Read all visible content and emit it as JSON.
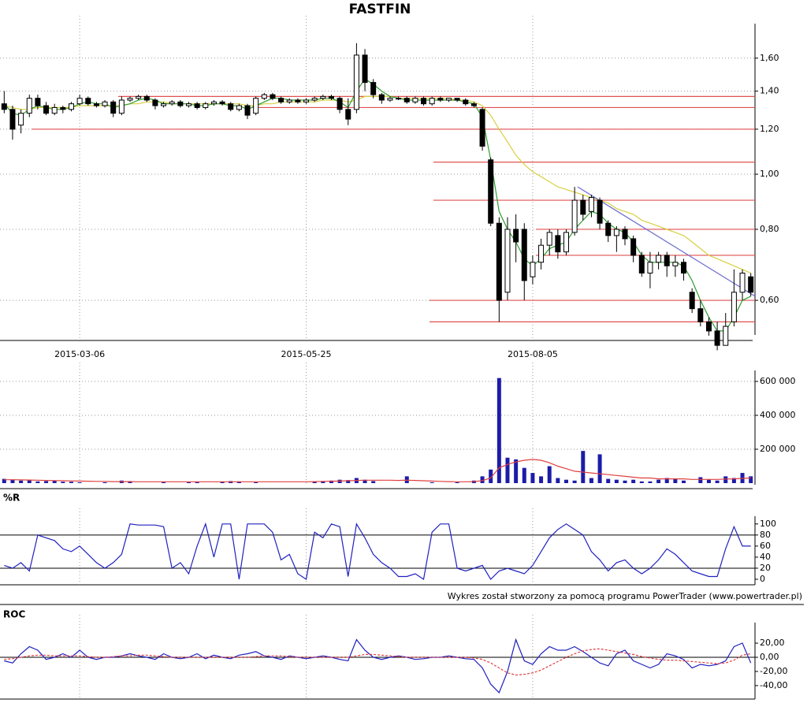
{
  "chart_data": [
    {
      "type": "candlestick",
      "title": "FASTFIN",
      "log_scale": true,
      "grid": true,
      "categories": [
        null,
        null,
        null,
        null,
        null,
        null,
        null,
        null,
        null,
        "2015-03-06",
        null,
        null,
        null,
        null,
        null,
        null,
        null,
        null,
        null,
        null,
        null,
        null,
        null,
        null,
        null,
        null,
        null,
        null,
        null,
        null,
        null,
        null,
        null,
        null,
        null,
        null,
        "2015-05-25",
        null,
        null,
        null,
        null,
        null,
        null,
        null,
        null,
        null,
        null,
        null,
        null,
        null,
        null,
        null,
        null,
        null,
        null,
        null,
        null,
        null,
        null,
        null,
        null,
        null,
        null,
        "2015-08-05",
        null,
        null,
        null,
        null,
        null,
        null,
        null,
        null,
        null,
        null,
        null,
        null,
        null,
        null,
        null,
        null,
        null,
        null,
        null,
        null,
        null,
        null,
        null,
        null,
        null,
        null
      ],
      "open": [
        1.33,
        1.3,
        1.22,
        1.28,
        1.36,
        1.32,
        1.28,
        1.31,
        1.3,
        1.33,
        1.36,
        1.33,
        1.32,
        1.34,
        1.28,
        1.35,
        1.36,
        1.37,
        1.35,
        1.32,
        1.33,
        1.34,
        1.32,
        1.33,
        1.31,
        1.33,
        1.34,
        1.33,
        1.3,
        1.32,
        1.28,
        1.36,
        1.38,
        1.36,
        1.34,
        1.35,
        1.34,
        1.35,
        1.36,
        1.37,
        1.36,
        1.3,
        1.3,
        1.62,
        1.45,
        1.38,
        1.35,
        1.36,
        1.36,
        1.34,
        1.36,
        1.33,
        1.36,
        1.35,
        1.36,
        1.35,
        1.33,
        1.3,
        1.06,
        0.82,
        0.62,
        0.8,
        0.8,
        0.66,
        0.7,
        0.75,
        0.78,
        0.73,
        0.79,
        0.9,
        0.86,
        0.9,
        0.82,
        0.78,
        0.8,
        0.77,
        0.72,
        0.67,
        0.7,
        0.72,
        0.69,
        0.7,
        0.62,
        0.58,
        0.55,
        0.53,
        0.5,
        0.55,
        0.62,
        0.66
      ],
      "high": [
        1.4,
        1.32,
        1.3,
        1.38,
        1.38,
        1.34,
        1.33,
        1.32,
        1.34,
        1.38,
        1.37,
        1.34,
        1.35,
        1.35,
        1.37,
        1.37,
        1.38,
        1.38,
        1.36,
        1.34,
        1.35,
        1.35,
        1.34,
        1.34,
        1.34,
        1.35,
        1.35,
        1.34,
        1.33,
        1.33,
        1.37,
        1.39,
        1.39,
        1.37,
        1.36,
        1.36,
        1.36,
        1.37,
        1.38,
        1.38,
        1.37,
        1.36,
        1.7,
        1.66,
        1.47,
        1.39,
        1.37,
        1.37,
        1.37,
        1.37,
        1.37,
        1.37,
        1.37,
        1.36,
        1.36,
        1.36,
        1.34,
        1.31,
        1.07,
        0.84,
        0.84,
        0.85,
        0.82,
        0.72,
        0.77,
        0.8,
        0.8,
        0.8,
        0.95,
        0.92,
        0.92,
        0.91,
        0.83,
        0.81,
        0.81,
        0.78,
        0.73,
        0.73,
        0.73,
        0.73,
        0.72,
        0.71,
        0.63,
        0.6,
        0.56,
        0.55,
        0.57,
        0.68,
        0.68,
        0.67
      ],
      "low": [
        1.28,
        1.15,
        1.18,
        1.26,
        1.3,
        1.27,
        1.27,
        1.28,
        1.29,
        1.32,
        1.32,
        1.31,
        1.31,
        1.26,
        1.27,
        1.34,
        1.35,
        1.34,
        1.3,
        1.31,
        1.32,
        1.31,
        1.31,
        1.3,
        1.3,
        1.32,
        1.32,
        1.29,
        1.29,
        1.25,
        1.27,
        1.35,
        1.35,
        1.33,
        1.33,
        1.33,
        1.33,
        1.34,
        1.35,
        1.35,
        1.28,
        1.22,
        1.28,
        1.4,
        1.36,
        1.33,
        1.34,
        1.35,
        1.33,
        1.33,
        1.32,
        1.32,
        1.34,
        1.34,
        1.34,
        1.32,
        1.31,
        1.1,
        0.81,
        0.55,
        0.6,
        0.7,
        0.6,
        0.64,
        0.68,
        0.72,
        0.71,
        0.72,
        0.78,
        0.83,
        0.84,
        0.8,
        0.76,
        0.73,
        0.75,
        0.7,
        0.66,
        0.63,
        0.68,
        0.66,
        0.66,
        0.65,
        0.57,
        0.54,
        0.52,
        0.49,
        0.5,
        0.54,
        0.6,
        0.61
      ],
      "close": [
        1.3,
        1.2,
        1.28,
        1.36,
        1.32,
        1.28,
        1.31,
        1.3,
        1.33,
        1.36,
        1.33,
        1.32,
        1.34,
        1.28,
        1.35,
        1.36,
        1.37,
        1.35,
        1.32,
        1.33,
        1.34,
        1.32,
        1.33,
        1.31,
        1.33,
        1.34,
        1.33,
        1.3,
        1.32,
        1.27,
        1.36,
        1.38,
        1.36,
        1.34,
        1.35,
        1.34,
        1.35,
        1.36,
        1.37,
        1.36,
        1.3,
        1.25,
        1.62,
        1.45,
        1.38,
        1.35,
        1.36,
        1.36,
        1.34,
        1.36,
        1.33,
        1.36,
        1.35,
        1.36,
        1.35,
        1.33,
        1.32,
        1.12,
        0.82,
        0.6,
        0.8,
        0.76,
        0.65,
        0.7,
        0.75,
        0.79,
        0.73,
        0.79,
        0.9,
        0.85,
        0.91,
        0.82,
        0.78,
        0.8,
        0.77,
        0.72,
        0.67,
        0.7,
        0.72,
        0.69,
        0.7,
        0.67,
        0.58,
        0.55,
        0.53,
        0.5,
        0.54,
        0.62,
        0.67,
        0.62
      ],
      "moving_averages": [
        {
          "color": "#2e9e2e",
          "values": [
            1.33,
            1.28,
            1.27,
            1.3,
            1.32,
            1.31,
            1.3,
            1.3,
            1.31,
            1.33,
            1.34,
            1.33,
            1.33,
            1.31,
            1.32,
            1.33,
            1.35,
            1.36,
            1.35,
            1.33,
            1.33,
            1.33,
            1.33,
            1.32,
            1.32,
            1.33,
            1.33,
            1.32,
            1.32,
            1.3,
            1.32,
            1.34,
            1.36,
            1.36,
            1.35,
            1.35,
            1.35,
            1.35,
            1.36,
            1.36,
            1.34,
            1.31,
            1.4,
            1.47,
            1.44,
            1.4,
            1.37,
            1.36,
            1.35,
            1.35,
            1.35,
            1.35,
            1.35,
            1.35,
            1.35,
            1.34,
            1.33,
            1.26,
            1.06,
            0.86,
            0.8,
            0.76,
            0.71,
            0.69,
            0.71,
            0.74,
            0.75,
            0.76,
            0.8,
            0.83,
            0.86,
            0.85,
            0.82,
            0.8,
            0.79,
            0.76,
            0.72,
            0.7,
            0.7,
            0.7,
            0.7,
            0.69,
            0.65,
            0.6,
            0.56,
            0.53,
            0.53,
            0.56,
            0.6,
            0.61
          ]
        },
        {
          "color": "#d8d040",
          "values": [
            1.32,
            1.31,
            1.3,
            1.3,
            1.31,
            1.31,
            1.31,
            1.31,
            1.31,
            1.32,
            1.32,
            1.32,
            1.32,
            1.32,
            1.32,
            1.33,
            1.33,
            1.34,
            1.34,
            1.34,
            1.33,
            1.33,
            1.33,
            1.33,
            1.33,
            1.33,
            1.33,
            1.33,
            1.33,
            1.32,
            1.32,
            1.33,
            1.33,
            1.34,
            1.34,
            1.34,
            1.34,
            1.34,
            1.35,
            1.35,
            1.35,
            1.34,
            1.35,
            1.37,
            1.37,
            1.37,
            1.37,
            1.36,
            1.36,
            1.36,
            1.36,
            1.36,
            1.36,
            1.36,
            1.35,
            1.35,
            1.34,
            1.32,
            1.27,
            1.2,
            1.14,
            1.08,
            1.04,
            1.01,
            0.99,
            0.97,
            0.95,
            0.94,
            0.93,
            0.92,
            0.91,
            0.9,
            0.89,
            0.87,
            0.86,
            0.85,
            0.83,
            0.82,
            0.81,
            0.8,
            0.79,
            0.78,
            0.76,
            0.74,
            0.72,
            0.71,
            0.7,
            0.69,
            0.68,
            0.67
          ]
        }
      ],
      "levels": [
        1.37,
        1.31,
        1.2,
        1.05,
        0.9,
        0.8,
        0.72,
        0.6,
        0.55
      ],
      "levels_color": "#e05050",
      "trend_line": [
        0.95,
        0.61
      ],
      "trend_color": "#6a6ad0",
      "ylim": [
        0.51,
        1.84
      ],
      "yticks": [
        {
          "value": 0.6,
          "label": "0,60"
        },
        {
          "value": 0.8,
          "label": "0,80"
        },
        {
          "value": 1.0,
          "label": "1,00"
        },
        {
          "value": 1.2,
          "label": "1,20"
        },
        {
          "value": 1.4,
          "label": "1,40"
        },
        {
          "value": 1.6,
          "label": "1,60"
        }
      ]
    },
    {
      "type": "bar",
      "grid": true,
      "color": "#1c1ca8",
      "values": [
        25000,
        20000,
        15000,
        20000,
        10000,
        12000,
        15000,
        8000,
        8000,
        5000,
        0,
        0,
        5000,
        0,
        15000,
        12000,
        0,
        0,
        0,
        6000,
        0,
        0,
        5000,
        6000,
        0,
        0,
        8000,
        12000,
        10000,
        0,
        5000,
        0,
        0,
        0,
        0,
        0,
        0,
        8000,
        12000,
        15000,
        20000,
        18000,
        30000,
        20000,
        12000,
        0,
        0,
        0,
        40000,
        0,
        0,
        5000,
        0,
        0,
        5000,
        0,
        15000,
        40000,
        80000,
        620000,
        150000,
        140000,
        90000,
        60000,
        40000,
        100000,
        30000,
        20000,
        15000,
        190000,
        30000,
        170000,
        25000,
        20000,
        15000,
        20000,
        10000,
        10000,
        20000,
        30000,
        25000,
        15000,
        0,
        35000,
        20000,
        15000,
        40000,
        30000,
        60000,
        40000
      ],
      "average": {
        "color": "#e04040",
        "values": [
          20000,
          20000,
          19000,
          18000,
          17000,
          16000,
          15000,
          14000,
          13000,
          12000,
          11000,
          10000,
          10000,
          9000,
          9000,
          9000,
          8000,
          8000,
          8000,
          8000,
          8000,
          8000,
          8000,
          8000,
          8000,
          8000,
          8000,
          8000,
          8000,
          8000,
          8000,
          8000,
          8000,
          8000,
          8000,
          8000,
          8000,
          9000,
          10000,
          11000,
          12000,
          14000,
          16000,
          17000,
          17000,
          17000,
          17000,
          16000,
          17000,
          16000,
          14000,
          12000,
          10000,
          9000,
          8000,
          8000,
          9000,
          15000,
          30000,
          90000,
          110000,
          125000,
          135000,
          140000,
          135000,
          120000,
          100000,
          85000,
          70000,
          65000,
          60000,
          55000,
          50000,
          45000,
          40000,
          35000,
          30000,
          30000,
          25000,
          25000,
          25000,
          25000,
          22000,
          22000,
          22000,
          22000,
          24000,
          25000,
          28000,
          30000
        ]
      },
      "ylim": [
        0,
        665000
      ],
      "yticks": [
        {
          "value": 200000,
          "label": "200 000"
        },
        {
          "value": 400000,
          "label": "400 000"
        },
        {
          "value": 600000,
          "label": "600 000"
        }
      ]
    },
    {
      "type": "line",
      "title": "%R",
      "color": "#2020c0",
      "values": [
        25,
        20,
        30,
        15,
        80,
        75,
        70,
        55,
        50,
        60,
        45,
        30,
        20,
        30,
        45,
        100,
        98,
        98,
        98,
        95,
        20,
        30,
        10,
        60,
        100,
        40,
        100,
        100,
        0,
        100,
        100,
        100,
        85,
        35,
        45,
        10,
        0,
        85,
        75,
        100,
        95,
        5,
        100,
        75,
        45,
        30,
        20,
        5,
        5,
        10,
        0,
        85,
        100,
        100,
        20,
        15,
        20,
        25,
        0,
        15,
        20,
        15,
        10,
        25,
        50,
        75,
        90,
        100,
        90,
        80,
        50,
        35,
        15,
        30,
        35,
        20,
        10,
        20,
        35,
        55,
        45,
        30,
        15,
        10,
        5,
        5,
        55,
        95,
        60,
        60
      ],
      "reference_lines": [
        20,
        80
      ],
      "ylim": [
        -10,
        114
      ],
      "yticks": [
        0,
        20,
        40,
        60,
        80,
        100
      ]
    },
    {
      "type": "line",
      "title": "ROC",
      "series": [
        {
          "color": "#2020c0",
          "values": [
            -5,
            -8,
            5,
            15,
            10,
            -3,
            0,
            5,
            0,
            10,
            0,
            -3,
            0,
            0,
            2,
            5,
            2,
            0,
            -3,
            5,
            0,
            -2,
            0,
            5,
            -2,
            3,
            0,
            -2,
            3,
            5,
            8,
            2,
            0,
            -3,
            2,
            0,
            -2,
            0,
            2,
            0,
            -3,
            -5,
            25,
            10,
            0,
            -3,
            0,
            2,
            0,
            -3,
            -2,
            0,
            0,
            2,
            0,
            -2,
            -3,
            -15,
            -38,
            -50,
            -20,
            25,
            -5,
            -10,
            5,
            15,
            10,
            10,
            15,
            8,
            0,
            -8,
            -12,
            5,
            10,
            -5,
            -10,
            -15,
            -10,
            5,
            2,
            -3,
            -15,
            -10,
            -12,
            -10,
            -5,
            15,
            20,
            -8
          ]
        },
        {
          "color": "#e04040",
          "dashed": true,
          "values": [
            -3,
            -2,
            0,
            2,
            3,
            3,
            2,
            2,
            2,
            2,
            1,
            0,
            0,
            1,
            2,
            2,
            3,
            3,
            2,
            1,
            0,
            0,
            0,
            0,
            0,
            0,
            0,
            0,
            0,
            0,
            1,
            2,
            2,
            2,
            1,
            0,
            0,
            0,
            0,
            0,
            0,
            0,
            2,
            4,
            4,
            3,
            2,
            1,
            0,
            0,
            0,
            0,
            0,
            0,
            0,
            0,
            -1,
            -3,
            -8,
            -15,
            -22,
            -25,
            -24,
            -22,
            -18,
            -12,
            -6,
            0,
            5,
            9,
            11,
            12,
            10,
            8,
            6,
            4,
            1,
            -1,
            -3,
            -4,
            -4,
            -5,
            -6,
            -7,
            -8,
            -9,
            -8,
            -4,
            3,
            5
          ]
        }
      ],
      "zero_line": 0,
      "ylim": [
        -59,
        49
      ],
      "yticks": [
        {
          "value": -40,
          "label": "-40,00"
        },
        {
          "value": -20,
          "label": "-20,00"
        },
        {
          "value": 0,
          "label": "0,00"
        },
        {
          "value": 20,
          "label": "20,00"
        }
      ]
    }
  ],
  "footer": "Wykres został stworzony za pomocą programu PowerTrader (www.powertrader.pl)"
}
